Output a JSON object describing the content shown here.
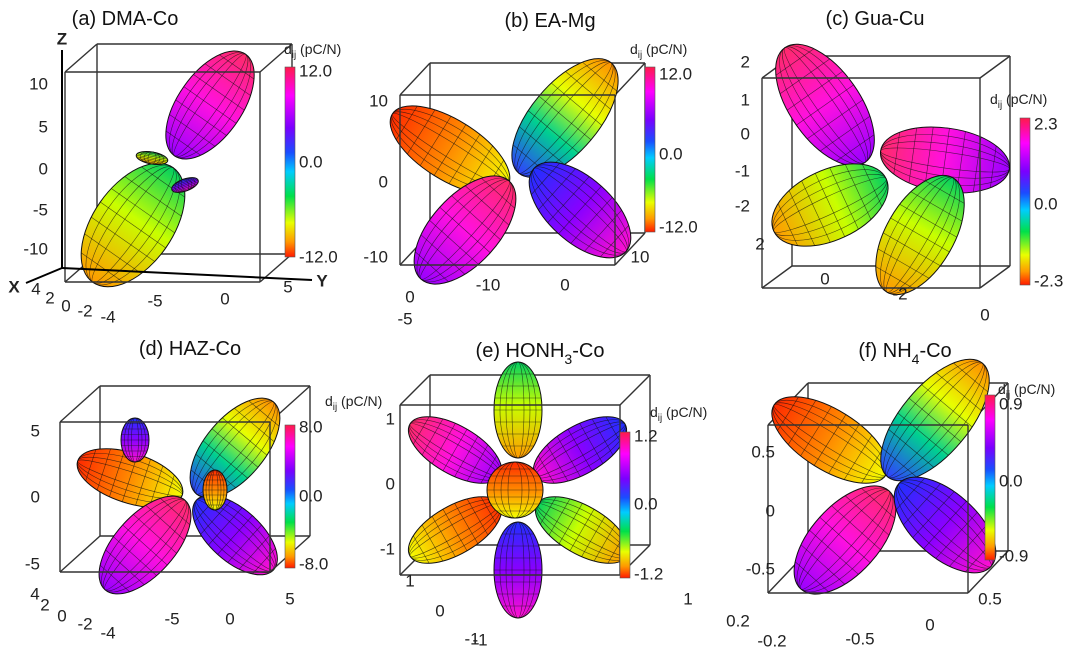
{
  "panels": [
    {
      "title": [
        {
          "text": "(a) DMA-Co"
        }
      ],
      "colorbar": {
        "label": [
          {
            "text": "d"
          },
          {
            "text": "ij",
            "sub": true
          },
          {
            "text": " (pC/N)"
          }
        ],
        "ticks": [
          "12.0",
          "0.0",
          "-12.0"
        ]
      },
      "axis_ticks": {
        "vertical": [
          "10",
          "5",
          "0",
          "-5",
          "-10"
        ],
        "horizontal": [
          "-5",
          "0",
          "5"
        ],
        "depth": [
          "4",
          "2",
          "0",
          "-2",
          "-4"
        ]
      },
      "axis_labels": [
        "Z",
        "X",
        "Y"
      ]
    },
    {
      "title": [
        {
          "text": "(b) EA-Mg"
        }
      ],
      "colorbar": {
        "label": [
          {
            "text": "d"
          },
          {
            "text": "ij",
            "sub": true
          },
          {
            "text": " (pC/N)"
          }
        ],
        "ticks": [
          "12.0",
          "0.0",
          "-12.0"
        ]
      },
      "axis_ticks": {
        "vertical": [
          "10",
          "0",
          "-10"
        ],
        "horizontal": [
          "-10",
          "0",
          "10"
        ],
        "depth": [
          "0",
          "-5"
        ]
      }
    },
    {
      "title": [
        {
          "text": "(c) Gua-Cu"
        }
      ],
      "colorbar": {
        "label": [
          {
            "text": "d"
          },
          {
            "text": "ij",
            "sub": true
          },
          {
            "text": " (pC/N)"
          }
        ],
        "ticks": [
          "2.3",
          "0.0",
          "-2.3"
        ]
      },
      "axis_ticks": {
        "vertical": [
          "2",
          "1",
          "0",
          "-1",
          "-2"
        ],
        "horizontal": [
          "-2",
          "0"
        ],
        "depth": [
          "2",
          "0"
        ]
      }
    },
    {
      "title": [
        {
          "text": "(d) HAZ-Co"
        }
      ],
      "colorbar": {
        "label": [
          {
            "text": "d"
          },
          {
            "text": "ij",
            "sub": true
          },
          {
            "text": " (pC/N)"
          }
        ],
        "ticks": [
          "8.0",
          "0.0",
          "-8.0"
        ]
      },
      "axis_ticks": {
        "vertical": [
          "5",
          "0",
          "-5"
        ],
        "horizontal": [
          "-5",
          "0",
          "5"
        ],
        "depth": [
          "4",
          "2",
          "0",
          "-2",
          "-4"
        ]
      }
    },
    {
      "title": [
        {
          "text": "(e) HONH"
        },
        {
          "text": "3",
          "sub": true
        },
        {
          "text": "-Co"
        }
      ],
      "colorbar": {
        "label": [
          {
            "text": "d"
          },
          {
            "text": "ij",
            "sub": true
          },
          {
            "text": " (pC/N)"
          }
        ],
        "ticks": [
          "1.2",
          "0.0",
          "-1.2"
        ]
      },
      "axis_ticks": {
        "vertical": [
          "1",
          "0",
          "-1"
        ],
        "horizontal": [
          "-1",
          "1"
        ],
        "depth": [
          "1",
          "0",
          "-1"
        ]
      }
    },
    {
      "title": [
        {
          "text": "(f) NH"
        },
        {
          "text": "4",
          "sub": true
        },
        {
          "text": "-Co"
        }
      ],
      "colorbar": {
        "label": [
          {
            "text": "d"
          },
          {
            "text": "ij",
            "sub": true
          },
          {
            "text": " (pC/N)"
          }
        ],
        "ticks": [
          "0.9",
          "0.0",
          "-0.9"
        ]
      },
      "axis_ticks": {
        "vertical": [
          "0.5",
          "0",
          "-0.5"
        ],
        "horizontal": [
          "-0.5",
          "0",
          "0.5"
        ],
        "depth": [
          "0.2",
          "-0.2"
        ]
      }
    }
  ]
}
